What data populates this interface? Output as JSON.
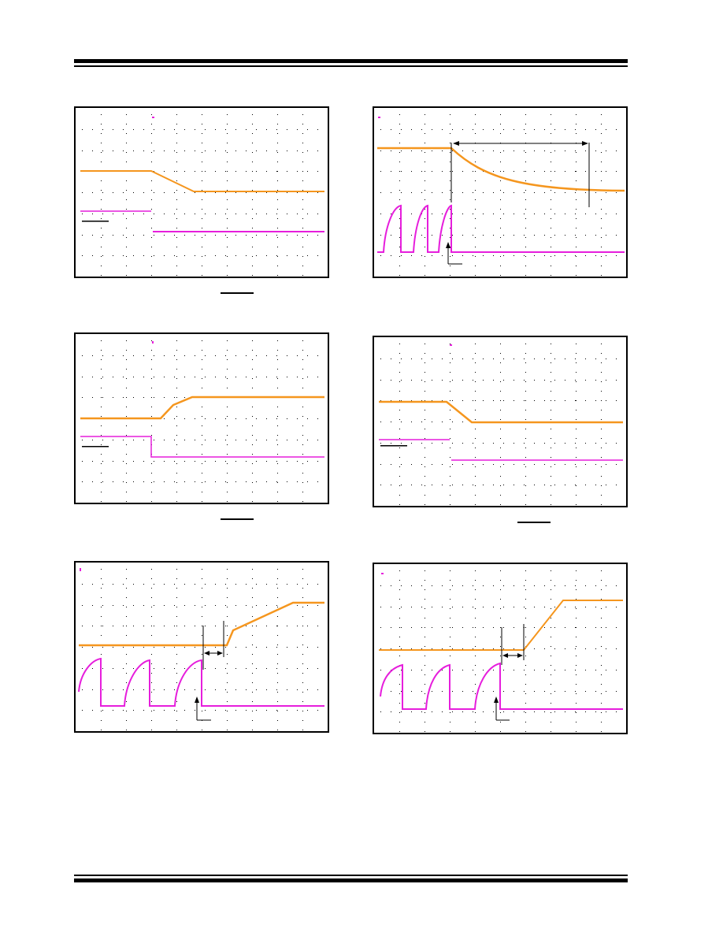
{
  "colors": {
    "trace_orange": "#f5961e",
    "trace_magenta": "#e61edc",
    "grid": "#000000",
    "rule": "#000000"
  },
  "page": {
    "header_rule": "double-rule",
    "footer_rule": "double-rule"
  },
  "figures": [
    {
      "id": "scope-1",
      "trace1": "orange-step-down-ramp",
      "trace2": "magenta-step-down",
      "has_timing_markers": false
    },
    {
      "id": "scope-2",
      "trace1": "orange-exponential-decay",
      "trace2": "magenta-pulses-then-low",
      "has_timing_markers": true
    },
    {
      "id": "scope-3",
      "trace1": "orange-step-up-ramp",
      "trace2": "magenta-step-down",
      "has_timing_markers": false
    },
    {
      "id": "scope-4",
      "trace1": "orange-step-down-ramp",
      "trace2": "magenta-step-down",
      "has_timing_markers": false
    },
    {
      "id": "scope-5",
      "trace1": "orange-delayed-ramp-up",
      "trace2": "magenta-pulses-then-low",
      "has_timing_markers": true
    },
    {
      "id": "scope-6",
      "trace1": "orange-delayed-ramp-up",
      "trace2": "magenta-pulses-then-low",
      "has_timing_markers": true
    }
  ]
}
